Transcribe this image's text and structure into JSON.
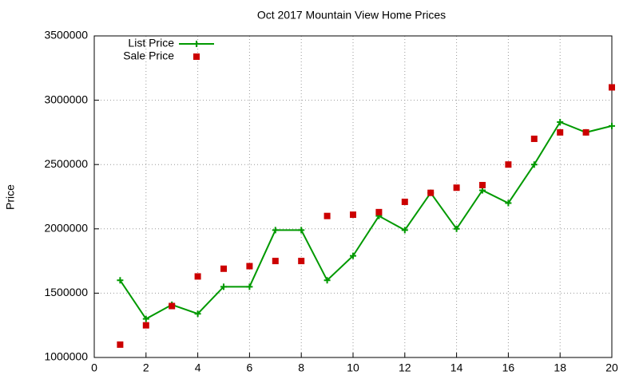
{
  "chart_data": {
    "type": "line",
    "title": "Oct 2017 Mountain View Home Prices",
    "y_label": "Price",
    "x": [
      1,
      2,
      3,
      4,
      5,
      6,
      7,
      8,
      9,
      10,
      11,
      12,
      13,
      14,
      15,
      16,
      17,
      18,
      19,
      20
    ],
    "series": [
      {
        "name": "List Price",
        "color": "#009900",
        "style": "linespoints",
        "values": [
          1600000,
          1300000,
          1410000,
          1340000,
          1550000,
          1550000,
          1990000,
          1990000,
          1600000,
          1790000,
          2100000,
          1990000,
          2280000,
          2000000,
          2300000,
          2200000,
          2500000,
          2830000,
          2750000,
          2800000
        ]
      },
      {
        "name": "Sale Price",
        "color": "#cc0000",
        "style": "points",
        "values": [
          1100000,
          1250000,
          1400000,
          1630000,
          1690000,
          1710000,
          1750000,
          1750000,
          2100000,
          2110000,
          2130000,
          2210000,
          2280000,
          2320000,
          2340000,
          2500000,
          2700000,
          2750000,
          2750000,
          3100000
        ]
      }
    ],
    "xlim": [
      0,
      20
    ],
    "xticks": [
      0,
      2,
      4,
      6,
      8,
      10,
      12,
      14,
      16,
      18,
      20
    ],
    "ylim": [
      1000000,
      3500000
    ],
    "yticks": [
      1000000,
      1500000,
      2000000,
      2500000,
      3000000,
      3500000
    ],
    "grid": true,
    "legend": "top-left"
  }
}
